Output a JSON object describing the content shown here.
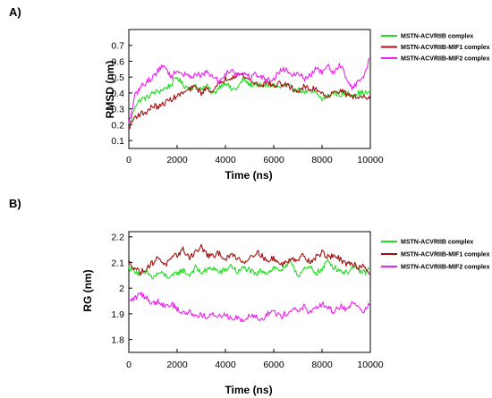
{
  "chart_data": [
    {
      "panel_label": "A)",
      "type": "line",
      "title": "",
      "xlabel": "Time (ns)",
      "ylabel": "RMSD (nm)",
      "xlim": [
        0,
        10000
      ],
      "ylim": [
        0.05,
        0.8
      ],
      "xticks": [
        0,
        2000,
        4000,
        6000,
        8000,
        10000
      ],
      "yticks": [
        0.1,
        0.2,
        0.3,
        0.4,
        0.5,
        0.6,
        0.7
      ],
      "ytick_labels": [
        "0.1",
        "0.2",
        "0.3",
        "0.4",
        "0.5",
        "0.6",
        "0.7"
      ],
      "grid": false,
      "legend_position": "right, outside plot",
      "series": [
        {
          "name": "MSTN-ACVRIIB complex",
          "color": "#22dd22",
          "x": [
            0,
            250,
            500,
            750,
            1000,
            1250,
            1500,
            1750,
            2000,
            2250,
            2500,
            2750,
            3000,
            3250,
            3500,
            3750,
            4000,
            4250,
            4500,
            4750,
            5000,
            5250,
            5500,
            5750,
            6000,
            6250,
            6500,
            6750,
            7000,
            7250,
            7500,
            7750,
            8000,
            8250,
            8500,
            8750,
            9000,
            9250,
            9500,
            9750,
            10000
          ],
          "y": [
            0.17,
            0.32,
            0.36,
            0.37,
            0.4,
            0.41,
            0.43,
            0.45,
            0.5,
            0.45,
            0.43,
            0.44,
            0.43,
            0.44,
            0.39,
            0.44,
            0.47,
            0.42,
            0.43,
            0.49,
            0.45,
            0.46,
            0.44,
            0.45,
            0.45,
            0.43,
            0.45,
            0.43,
            0.42,
            0.41,
            0.4,
            0.4,
            0.36,
            0.38,
            0.4,
            0.39,
            0.4,
            0.39,
            0.4,
            0.4,
            0.4
          ]
        },
        {
          "name": "MSTN-ACVRIIB-MIF1 complex",
          "color": "#a01010",
          "x": [
            0,
            250,
            500,
            750,
            1000,
            1250,
            1500,
            1750,
            2000,
            2250,
            2500,
            2750,
            3000,
            3250,
            3500,
            3750,
            4000,
            4250,
            4500,
            4750,
            5000,
            5250,
            5500,
            5750,
            6000,
            6250,
            6500,
            6750,
            7000,
            7250,
            7500,
            7750,
            8000,
            8250,
            8500,
            8750,
            9000,
            9250,
            9500,
            9750,
            10000
          ],
          "y": [
            0.18,
            0.25,
            0.27,
            0.28,
            0.32,
            0.31,
            0.34,
            0.36,
            0.38,
            0.4,
            0.42,
            0.44,
            0.4,
            0.43,
            0.41,
            0.46,
            0.49,
            0.5,
            0.52,
            0.51,
            0.48,
            0.46,
            0.45,
            0.47,
            0.44,
            0.46,
            0.45,
            0.43,
            0.41,
            0.44,
            0.42,
            0.43,
            0.4,
            0.38,
            0.4,
            0.42,
            0.39,
            0.38,
            0.37,
            0.38,
            0.37
          ]
        },
        {
          "name": "MSTN-ACVRIIB-MIF2 complex",
          "color": "#ee22ee",
          "x": [
            0,
            250,
            500,
            750,
            1000,
            1250,
            1500,
            1750,
            2000,
            2250,
            2500,
            2750,
            3000,
            3250,
            3500,
            3750,
            4000,
            4250,
            4500,
            4750,
            5000,
            5250,
            5500,
            5750,
            6000,
            6250,
            6500,
            6750,
            7000,
            7250,
            7500,
            7750,
            8000,
            8250,
            8500,
            8750,
            9000,
            9250,
            9500,
            9750,
            10000
          ],
          "y": [
            0.2,
            0.38,
            0.44,
            0.47,
            0.5,
            0.55,
            0.57,
            0.5,
            0.54,
            0.52,
            0.5,
            0.52,
            0.51,
            0.53,
            0.5,
            0.47,
            0.52,
            0.55,
            0.51,
            0.53,
            0.5,
            0.52,
            0.5,
            0.48,
            0.49,
            0.54,
            0.55,
            0.52,
            0.53,
            0.49,
            0.51,
            0.55,
            0.53,
            0.57,
            0.52,
            0.58,
            0.5,
            0.43,
            0.47,
            0.51,
            0.63
          ]
        }
      ]
    },
    {
      "panel_label": "B)",
      "type": "line",
      "title": "",
      "xlabel": "Time (ns)",
      "ylabel": "RG (nm)",
      "xlim": [
        0,
        10000
      ],
      "ylim": [
        1.75,
        2.22
      ],
      "xticks": [
        0,
        2000,
        4000,
        6000,
        8000,
        10000
      ],
      "yticks": [
        1.8,
        1.9,
        2.0,
        2.1,
        2.2
      ],
      "ytick_labels": [
        "1.8",
        "1.9",
        "2",
        "2.1",
        "2.2"
      ],
      "grid": false,
      "legend_position": "right, outside plot",
      "series": [
        {
          "name": "MSTN-ACVRIIB complex",
          "color": "#22dd22",
          "x": [
            0,
            250,
            500,
            750,
            1000,
            1250,
            1500,
            1750,
            2000,
            2250,
            2500,
            2750,
            3000,
            3250,
            3500,
            3750,
            4000,
            4250,
            4500,
            4750,
            5000,
            5250,
            5500,
            5750,
            6000,
            6250,
            6500,
            6750,
            7000,
            7250,
            7500,
            7750,
            8000,
            8250,
            8500,
            8750,
            9000,
            9250,
            9500,
            9750,
            10000
          ],
          "y": [
            2.08,
            2.07,
            2.05,
            2.06,
            2.04,
            2.06,
            2.05,
            2.04,
            2.06,
            2.07,
            2.05,
            2.08,
            2.06,
            2.07,
            2.08,
            2.06,
            2.07,
            2.09,
            2.06,
            2.08,
            2.07,
            2.05,
            2.07,
            2.06,
            2.08,
            2.07,
            2.08,
            2.1,
            2.05,
            2.07,
            2.08,
            2.06,
            2.07,
            2.11,
            2.08,
            2.07,
            2.06,
            2.08,
            2.07,
            2.06,
            2.08
          ]
        },
        {
          "name": "MSTN-ACVRIIB-MIF1 complex",
          "color": "#a01010",
          "x": [
            0,
            250,
            500,
            750,
            1000,
            1250,
            1500,
            1750,
            2000,
            2250,
            2500,
            2750,
            3000,
            3250,
            3500,
            3750,
            4000,
            4250,
            4500,
            4750,
            5000,
            5250,
            5500,
            5750,
            6000,
            6250,
            6500,
            6750,
            7000,
            7250,
            7500,
            7750,
            8000,
            8250,
            8500,
            8750,
            9000,
            9250,
            9500,
            9750,
            10000
          ],
          "y": [
            2.1,
            2.08,
            2.06,
            2.08,
            2.1,
            2.12,
            2.09,
            2.11,
            2.13,
            2.15,
            2.12,
            2.14,
            2.16,
            2.13,
            2.12,
            2.14,
            2.11,
            2.13,
            2.12,
            2.1,
            2.12,
            2.14,
            2.13,
            2.1,
            2.12,
            2.09,
            2.1,
            2.12,
            2.11,
            2.13,
            2.1,
            2.12,
            2.14,
            2.12,
            2.13,
            2.11,
            2.09,
            2.1,
            2.08,
            2.09,
            2.05
          ]
        },
        {
          "name": "MSTN-ACVRIIB-MIF2 complex",
          "color": "#ee22ee",
          "x": [
            0,
            250,
            500,
            750,
            1000,
            1250,
            1500,
            1750,
            2000,
            2250,
            2500,
            2750,
            3000,
            3250,
            3500,
            3750,
            4000,
            4250,
            4500,
            4750,
            5000,
            5250,
            5500,
            5750,
            6000,
            6250,
            6500,
            6750,
            7000,
            7250,
            7500,
            7750,
            8000,
            8250,
            8500,
            8750,
            9000,
            9250,
            9500,
            9750,
            10000
          ],
          "y": [
            1.95,
            1.96,
            1.98,
            1.96,
            1.94,
            1.95,
            1.93,
            1.94,
            1.92,
            1.9,
            1.91,
            1.89,
            1.9,
            1.88,
            1.9,
            1.89,
            1.9,
            1.88,
            1.89,
            1.87,
            1.9,
            1.89,
            1.88,
            1.9,
            1.91,
            1.89,
            1.9,
            1.92,
            1.91,
            1.93,
            1.9,
            1.92,
            1.94,
            1.92,
            1.91,
            1.93,
            1.92,
            1.94,
            1.93,
            1.91,
            1.94
          ]
        }
      ]
    }
  ]
}
